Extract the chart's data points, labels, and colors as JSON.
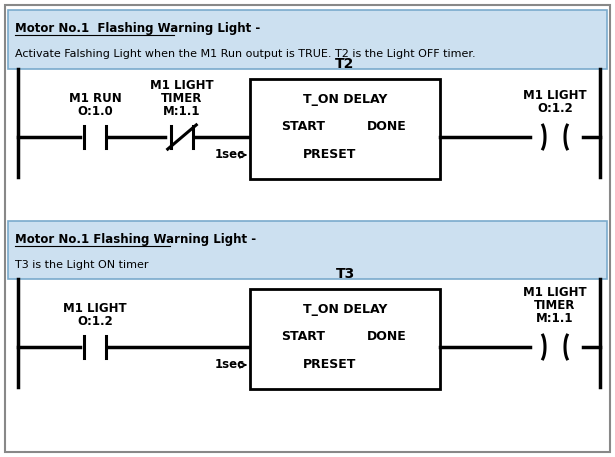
{
  "bg_color": "#ffffff",
  "comment_bg": "#cce0f0",
  "comment_border": "#7aaacc",
  "rung1": {
    "comment_line1": "Motor No.1  Flashing Warning Light -",
    "comment_line2": "Activate Falshing Light when the M1 Run output is TRUE. T2 is the Light OFF timer.",
    "contact1_label1": "M1 RUN",
    "contact1_label2": "O:1.0",
    "contact2_label1": "M1 LIGHT",
    "contact2_label2": "TIMER",
    "contact2_label3": "M:1.1",
    "timer_label": "T2",
    "timer_line1": "T_ON DELAY",
    "timer_line2_left": "START",
    "timer_line2_right": "DONE",
    "timer_line3": "PRESET",
    "timer_preset": "1sec",
    "coil_label1": "M1 LIGHT",
    "coil_label2": "O:1.2"
  },
  "rung2": {
    "comment_line1": "Motor No.1 Flashing Warning Light -",
    "comment_line2": "T3 is the Light ON timer",
    "contact1_label1": "M1 LIGHT",
    "contact1_label2": "O:1.2",
    "timer_label": "T3",
    "timer_line1": "T_ON DELAY",
    "timer_line2_left": "START",
    "timer_line2_right": "DONE",
    "timer_line3": "PRESET",
    "timer_preset": "1sec",
    "coil_label1": "M1 LIGHT",
    "coil_label2": "TIMER",
    "coil_label3": "M:1.1"
  },
  "fs_comment_title": 8.5,
  "fs_comment_body": 8.0,
  "fs_label": 8.5,
  "fs_timer": 9.0,
  "lw_rail": 2.5,
  "lw_contact": 2.2,
  "lw_timer": 2.0
}
